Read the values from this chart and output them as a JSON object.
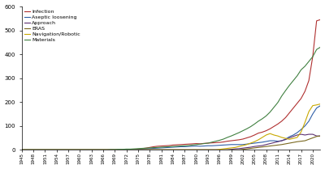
{
  "years": [
    1945,
    1946,
    1947,
    1948,
    1949,
    1950,
    1951,
    1952,
    1953,
    1954,
    1955,
    1956,
    1957,
    1958,
    1959,
    1960,
    1961,
    1962,
    1963,
    1964,
    1965,
    1966,
    1967,
    1968,
    1969,
    1970,
    1971,
    1972,
    1973,
    1974,
    1975,
    1976,
    1977,
    1978,
    1979,
    1980,
    1981,
    1982,
    1983,
    1984,
    1985,
    1986,
    1987,
    1988,
    1989,
    1990,
    1991,
    1992,
    1993,
    1994,
    1995,
    1996,
    1997,
    1998,
    1999,
    2000,
    2001,
    2002,
    2003,
    2004,
    2005,
    2006,
    2007,
    2008,
    2009,
    2010,
    2011,
    2012,
    2013,
    2014,
    2015,
    2016,
    2017,
    2018,
    2019,
    2020,
    2021,
    2022
  ],
  "infection": [
    0,
    0,
    0,
    0,
    0,
    0,
    0,
    0,
    0,
    0,
    0,
    0,
    0,
    0,
    0,
    0,
    0,
    0,
    0,
    0,
    0,
    0,
    0,
    0,
    0,
    0,
    0,
    0,
    1,
    1,
    3,
    5,
    7,
    10,
    13,
    15,
    16,
    17,
    18,
    20,
    21,
    22,
    23,
    24,
    25,
    26,
    25,
    27,
    28,
    29,
    30,
    31,
    33,
    36,
    38,
    40,
    42,
    45,
    50,
    55,
    62,
    70,
    74,
    80,
    88,
    98,
    108,
    120,
    135,
    155,
    175,
    195,
    215,
    245,
    290,
    390,
    540,
    545
  ],
  "aseptic_loosening": [
    0,
    0,
    0,
    0,
    0,
    0,
    0,
    0,
    0,
    0,
    0,
    0,
    0,
    0,
    0,
    0,
    0,
    0,
    0,
    0,
    0,
    0,
    0,
    0,
    0,
    0,
    0,
    0,
    1,
    1,
    2,
    3,
    4,
    5,
    6,
    7,
    8,
    9,
    10,
    11,
    12,
    13,
    13,
    14,
    15,
    16,
    15,
    16,
    17,
    17,
    18,
    19,
    20,
    21,
    22,
    22,
    22,
    22,
    24,
    26,
    28,
    30,
    32,
    35,
    38,
    38,
    36,
    38,
    45,
    55,
    62,
    72,
    85,
    100,
    120,
    150,
    175,
    185
  ],
  "approach": [
    0,
    0,
    0,
    0,
    0,
    0,
    0,
    0,
    0,
    0,
    0,
    0,
    0,
    0,
    0,
    0,
    0,
    0,
    0,
    0,
    0,
    0,
    0,
    0,
    0,
    0,
    0,
    0,
    0,
    0,
    0,
    0,
    0,
    0,
    0,
    0,
    0,
    0,
    0,
    0,
    0,
    0,
    0,
    0,
    0,
    0,
    0,
    0,
    0,
    0,
    0,
    0,
    0,
    0,
    2,
    4,
    5,
    7,
    9,
    11,
    14,
    16,
    18,
    22,
    26,
    30,
    34,
    38,
    43,
    50,
    56,
    62,
    65,
    62,
    65,
    65,
    58,
    58
  ],
  "eras": [
    0,
    0,
    0,
    0,
    0,
    0,
    0,
    0,
    0,
    0,
    0,
    0,
    0,
    0,
    0,
    0,
    0,
    0,
    0,
    0,
    0,
    0,
    0,
    0,
    0,
    0,
    0,
    0,
    0,
    0,
    0,
    0,
    0,
    0,
    0,
    0,
    0,
    0,
    0,
    0,
    0,
    0,
    0,
    0,
    0,
    0,
    0,
    0,
    0,
    0,
    0,
    0,
    0,
    0,
    0,
    0,
    0,
    2,
    4,
    6,
    8,
    10,
    12,
    14,
    16,
    18,
    20,
    22,
    25,
    28,
    31,
    34,
    36,
    38,
    44,
    50,
    56,
    58
  ],
  "navigation_robotic": [
    0,
    0,
    0,
    0,
    0,
    0,
    0,
    0,
    0,
    0,
    0,
    0,
    0,
    0,
    0,
    0,
    0,
    0,
    0,
    0,
    0,
    0,
    0,
    0,
    0,
    0,
    0,
    0,
    0,
    0,
    0,
    0,
    0,
    0,
    0,
    0,
    0,
    0,
    0,
    0,
    0,
    0,
    0,
    0,
    0,
    0,
    0,
    0,
    0,
    0,
    0,
    2,
    4,
    6,
    8,
    10,
    14,
    18,
    22,
    28,
    34,
    42,
    52,
    62,
    68,
    62,
    58,
    52,
    48,
    44,
    48,
    52,
    75,
    115,
    160,
    185,
    188,
    192
  ],
  "materials": [
    0,
    0,
    0,
    0,
    0,
    0,
    0,
    0,
    0,
    0,
    0,
    0,
    0,
    0,
    0,
    0,
    0,
    0,
    0,
    0,
    0,
    0,
    0,
    1,
    1,
    2,
    2,
    3,
    3,
    4,
    5,
    6,
    7,
    8,
    9,
    10,
    11,
    12,
    13,
    14,
    15,
    16,
    17,
    18,
    20,
    22,
    24,
    26,
    28,
    32,
    36,
    40,
    45,
    52,
    58,
    65,
    72,
    80,
    88,
    97,
    108,
    120,
    130,
    142,
    158,
    178,
    198,
    225,
    248,
    270,
    290,
    310,
    335,
    350,
    370,
    390,
    420,
    430
  ],
  "colors": {
    "infection": "#b03030",
    "aseptic_loosening": "#3060a8",
    "approach": "#5c3070",
    "eras": "#7a6820",
    "navigation_robotic": "#c8a800",
    "materials": "#408040"
  },
  "legend_labels": [
    "Infection",
    "Aseptic loosening",
    "Approach",
    "ERAS",
    "Navigation/Robotic",
    "Materials"
  ],
  "ylim": [
    0,
    600
  ],
  "yticks": [
    0,
    100,
    200,
    300,
    400,
    500,
    600
  ],
  "xtick_start": 1945,
  "xtick_end": 2023,
  "xtick_step": 3,
  "background_color": "#ffffff"
}
